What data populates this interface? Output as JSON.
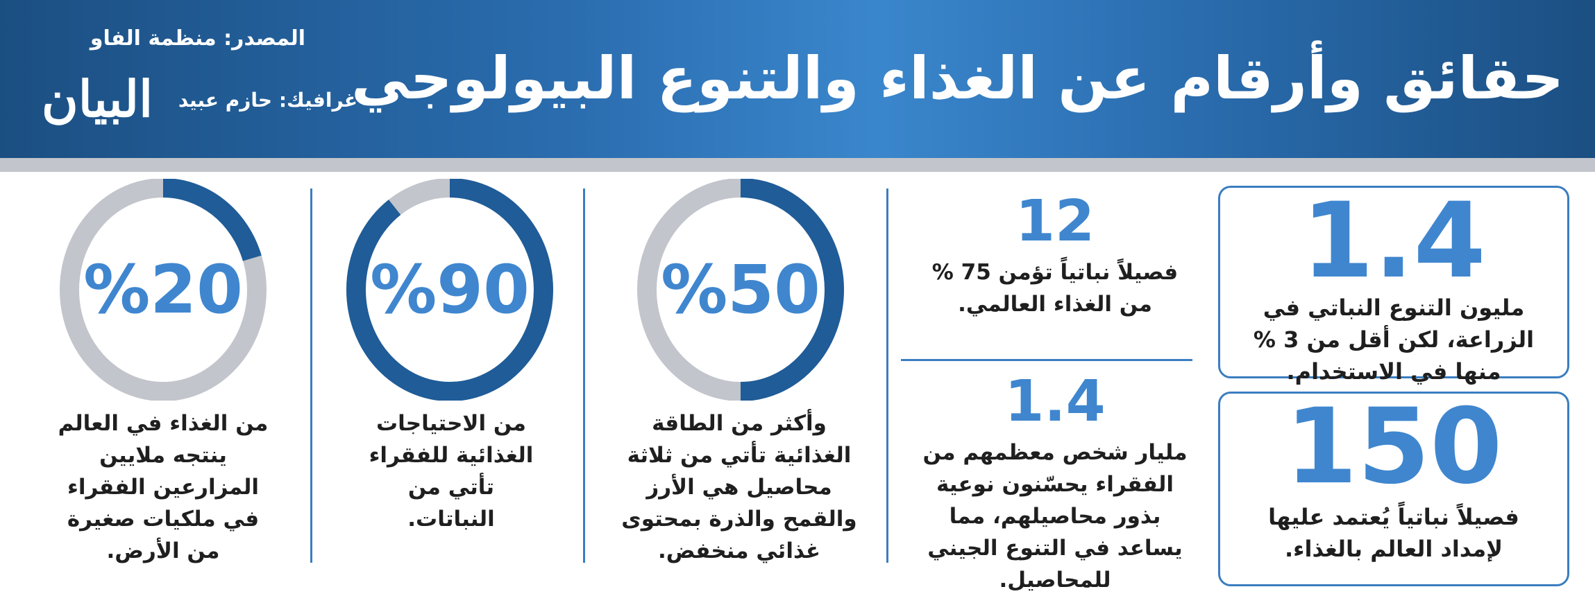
{
  "header": {
    "title": "حقائق وأرقام عن الغذاء والتنوع البيولوجي",
    "source": "المصدر: منظمة الفاو",
    "credit": "غرافيك: حازم عبيد",
    "logo": "البيان"
  },
  "facts": {
    "box1": {
      "number": "1.4",
      "text": "مليون التنوع النباتي في الزراعة، لكن أقل من 3 % منها في الاستخدام."
    },
    "box2": {
      "number": "150",
      "text": "فصيلاً نباتياً يُعتمد عليها لإمداد العالم بالغذاء."
    },
    "fact3": {
      "number": "12",
      "text": "فصيلاً نباتياً تؤمن 75 % من الغذاء العالمي."
    },
    "fact4": {
      "number": "1.4",
      "text": "مليار شخص معظمهم من الفقراء يحسّنون نوعية بذور محاصيلهم، مما يساعد في التنوع الجيني للمحاصيل."
    }
  },
  "rings": [
    {
      "label": "%50",
      "value": 50,
      "text": "وأكثر من الطاقة الغذائية تأتي من ثلاثة محاصيل هي الأرز والقمح والذرة بمحتوى غذائي منخفض."
    },
    {
      "label": "%90",
      "value": 90,
      "text": "من الاحتياجات الغذائية للفقراء تأتي من النباتات."
    },
    {
      "label": "%20",
      "value": 20,
      "text": "من الغذاء في العالم ينتجه ملايين المزارعين الفقراء في ملكيات صغيرة من الأرض."
    }
  ],
  "colors": {
    "accent": "#3f86cf",
    "ring_fill": "#1f5c98",
    "ring_track": "#c2c5cb"
  }
}
